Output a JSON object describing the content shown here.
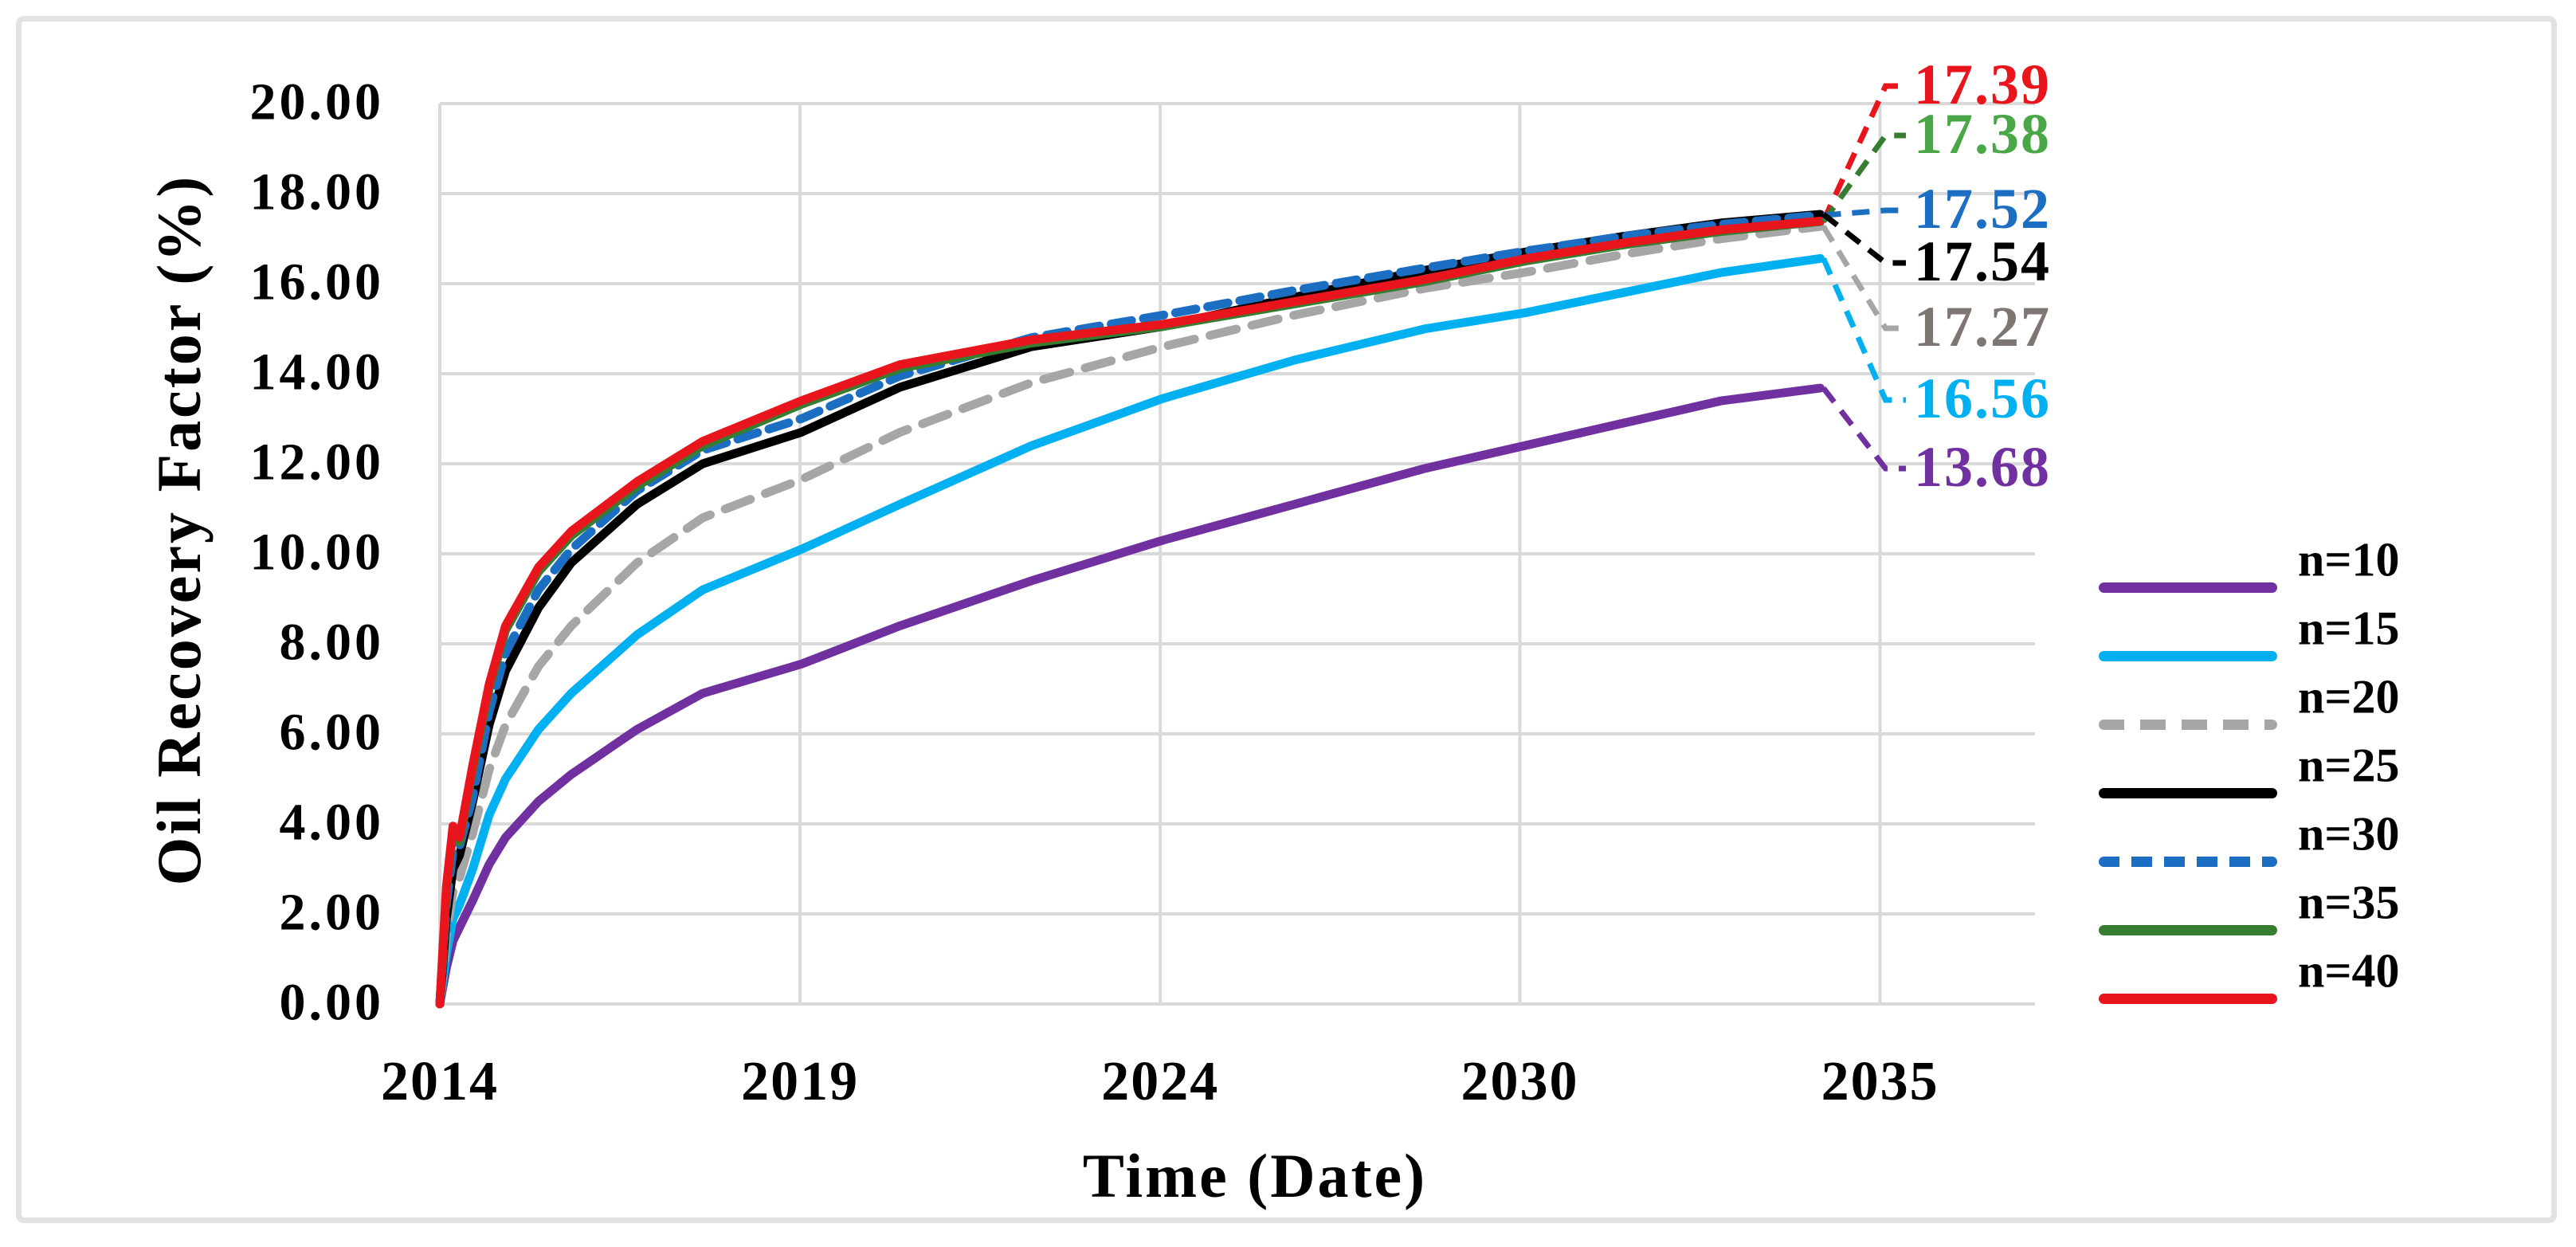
{
  "figure": {
    "background": "#ffffff",
    "frame_color": "#e2e2e2",
    "gridline_color": "#d9d9d9"
  },
  "axes": {
    "y": {
      "title": "Oil Recovery Factor (%)",
      "tick_labels": [
        "20.00",
        "18.00",
        "16.00",
        "14.00",
        "12.00",
        "10.00",
        "8.00",
        "6.00",
        "4.00",
        "2.00",
        "0.00"
      ],
      "min": 0,
      "max": 20,
      "step": 2
    },
    "x": {
      "title": "Time (Date)",
      "tick_labels": [
        "2014",
        "2019",
        "2024",
        "2030",
        "2035"
      ]
    }
  },
  "chart_data": {
    "type": "line",
    "title": "",
    "xlabel": "Time (Date)",
    "ylabel": "Oil Recovery Factor (%)",
    "ylim": [
      0,
      20
    ],
    "grid": true,
    "legend_position": "right",
    "x_tick_years": [
      2014,
      2019.48,
      2024.96,
      2030.43,
      2035.91
    ],
    "x_range_years": [
      2014,
      2038.3
    ],
    "x": [
      2014.0,
      2014.1,
      2014.2,
      2014.3,
      2014.5,
      2014.75,
      2015.0,
      2015.5,
      2016.0,
      2017.0,
      2018.0,
      2019.5,
      2021.0,
      2023.0,
      2025.0,
      2027.0,
      2029.0,
      2030.5,
      2032.0,
      2033.5,
      2035.0
    ],
    "series": [
      {
        "name": "n=10",
        "color": "#7030a0",
        "label_color": "#7030a0",
        "dash": "solid",
        "end_label": "13.68",
        "values": [
          0,
          0.8,
          1.4,
          1.7,
          2.3,
          3.1,
          3.7,
          4.5,
          5.1,
          6.1,
          6.9,
          7.55,
          8.4,
          9.4,
          10.3,
          11.1,
          11.9,
          12.4,
          12.9,
          13.4,
          13.68
        ]
      },
      {
        "name": "n=15",
        "color": "#00b0f0",
        "label_color": "#00b0f0",
        "dash": "solid",
        "end_label": "16.56",
        "values": [
          0,
          1.1,
          1.9,
          2.2,
          3.0,
          4.2,
          5.0,
          6.1,
          6.9,
          8.2,
          9.2,
          10.1,
          11.1,
          12.4,
          13.45,
          14.3,
          15.0,
          15.35,
          15.8,
          16.25,
          16.56
        ]
      },
      {
        "name": "n=20",
        "color": "#a6a6a6",
        "label_color": "#7e7672",
        "dash": "dashed",
        "end_label": "17.27",
        "values": [
          0,
          1.5,
          2.5,
          2.8,
          3.8,
          5.2,
          6.2,
          7.5,
          8.4,
          9.8,
          10.8,
          11.65,
          12.7,
          13.8,
          14.6,
          15.3,
          15.9,
          16.25,
          16.65,
          17.0,
          17.27
        ]
      },
      {
        "name": "n=25",
        "color": "#000000",
        "label_color": "#000000",
        "dash": "solid",
        "end_label": "17.54",
        "values": [
          0,
          1.9,
          3.0,
          3.3,
          4.5,
          6.2,
          7.4,
          8.8,
          9.8,
          11.1,
          12.0,
          12.7,
          13.7,
          14.6,
          15.05,
          15.7,
          16.3,
          16.7,
          17.05,
          17.35,
          17.54
        ]
      },
      {
        "name": "n=30",
        "color": "#1b6ec2",
        "label_color": "#1b6ec2",
        "dash": "dashed",
        "end_label": "17.52",
        "values": [
          0,
          2.2,
          3.4,
          3.5,
          4.6,
          6.5,
          7.8,
          9.2,
          10.1,
          11.4,
          12.3,
          13.0,
          13.95,
          14.8,
          15.3,
          15.85,
          16.35,
          16.72,
          17.05,
          17.32,
          17.52
        ]
      },
      {
        "name": "n=35",
        "color": "#377d31",
        "label_color": "#4aa747",
        "dash": "solid",
        "end_label": "17.38",
        "values": [
          0,
          2.5,
          3.85,
          3.6,
          5.2,
          7.0,
          8.3,
          9.6,
          10.4,
          11.5,
          12.4,
          13.32,
          14.12,
          14.68,
          15.05,
          15.55,
          16.05,
          16.5,
          16.86,
          17.16,
          17.38
        ]
      },
      {
        "name": "n=40",
        "color": "#e8151d",
        "label_color": "#e8151d",
        "dash": "solid",
        "end_label": "17.39",
        "values": [
          0,
          2.6,
          3.95,
          3.7,
          5.3,
          7.1,
          8.4,
          9.7,
          10.5,
          11.6,
          12.5,
          13.4,
          14.2,
          14.75,
          15.1,
          15.6,
          16.1,
          16.55,
          16.9,
          17.2,
          17.39
        ]
      }
    ]
  }
}
